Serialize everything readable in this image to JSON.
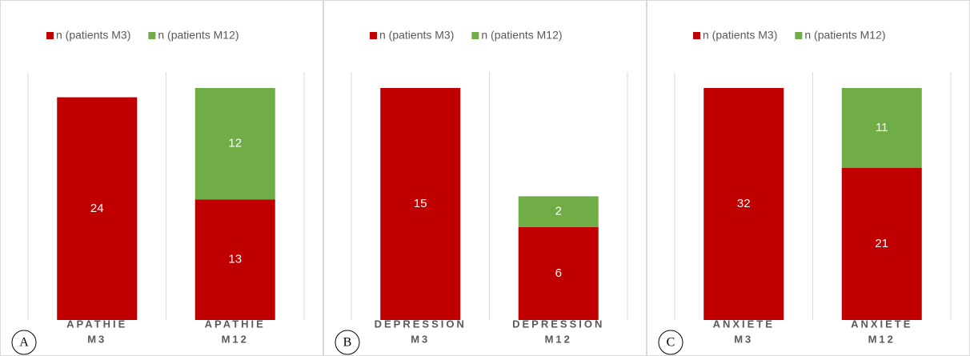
{
  "chart_data": [
    {
      "type": "stacked_bar",
      "label": "A",
      "categories": [
        [
          "APATHIE",
          "M3"
        ],
        [
          "APATHIE",
          "M12"
        ]
      ],
      "series": [
        {
          "name": "n (patients M3)",
          "color": "#c00000",
          "values": [
            24,
            13
          ]
        },
        {
          "name": "n (patients M12)",
          "color": "#70ad47",
          "values": [
            null,
            12
          ]
        }
      ]
    },
    {
      "type": "stacked_bar",
      "label": "B",
      "categories": [
        [
          "DÉPRESSION",
          "M3"
        ],
        [
          "DÉPRESSION",
          "M12"
        ]
      ],
      "series": [
        {
          "name": "n (patients M3)",
          "color": "#c00000",
          "values": [
            15,
            6
          ]
        },
        {
          "name": "n (patients M12)",
          "color": "#70ad47",
          "values": [
            null,
            2
          ]
        }
      ]
    },
    {
      "type": "stacked_bar",
      "label": "C",
      "categories": [
        [
          "ANXIÉTÉ",
          "M3"
        ],
        [
          "ANXIÉTÉ",
          "M12"
        ]
      ],
      "series": [
        {
          "name": "n (patients M3)",
          "color": "#c00000",
          "values": [
            32,
            21
          ]
        },
        {
          "name": "n (patients M12)",
          "color": "#70ad47",
          "values": [
            null,
            11
          ]
        }
      ]
    }
  ]
}
